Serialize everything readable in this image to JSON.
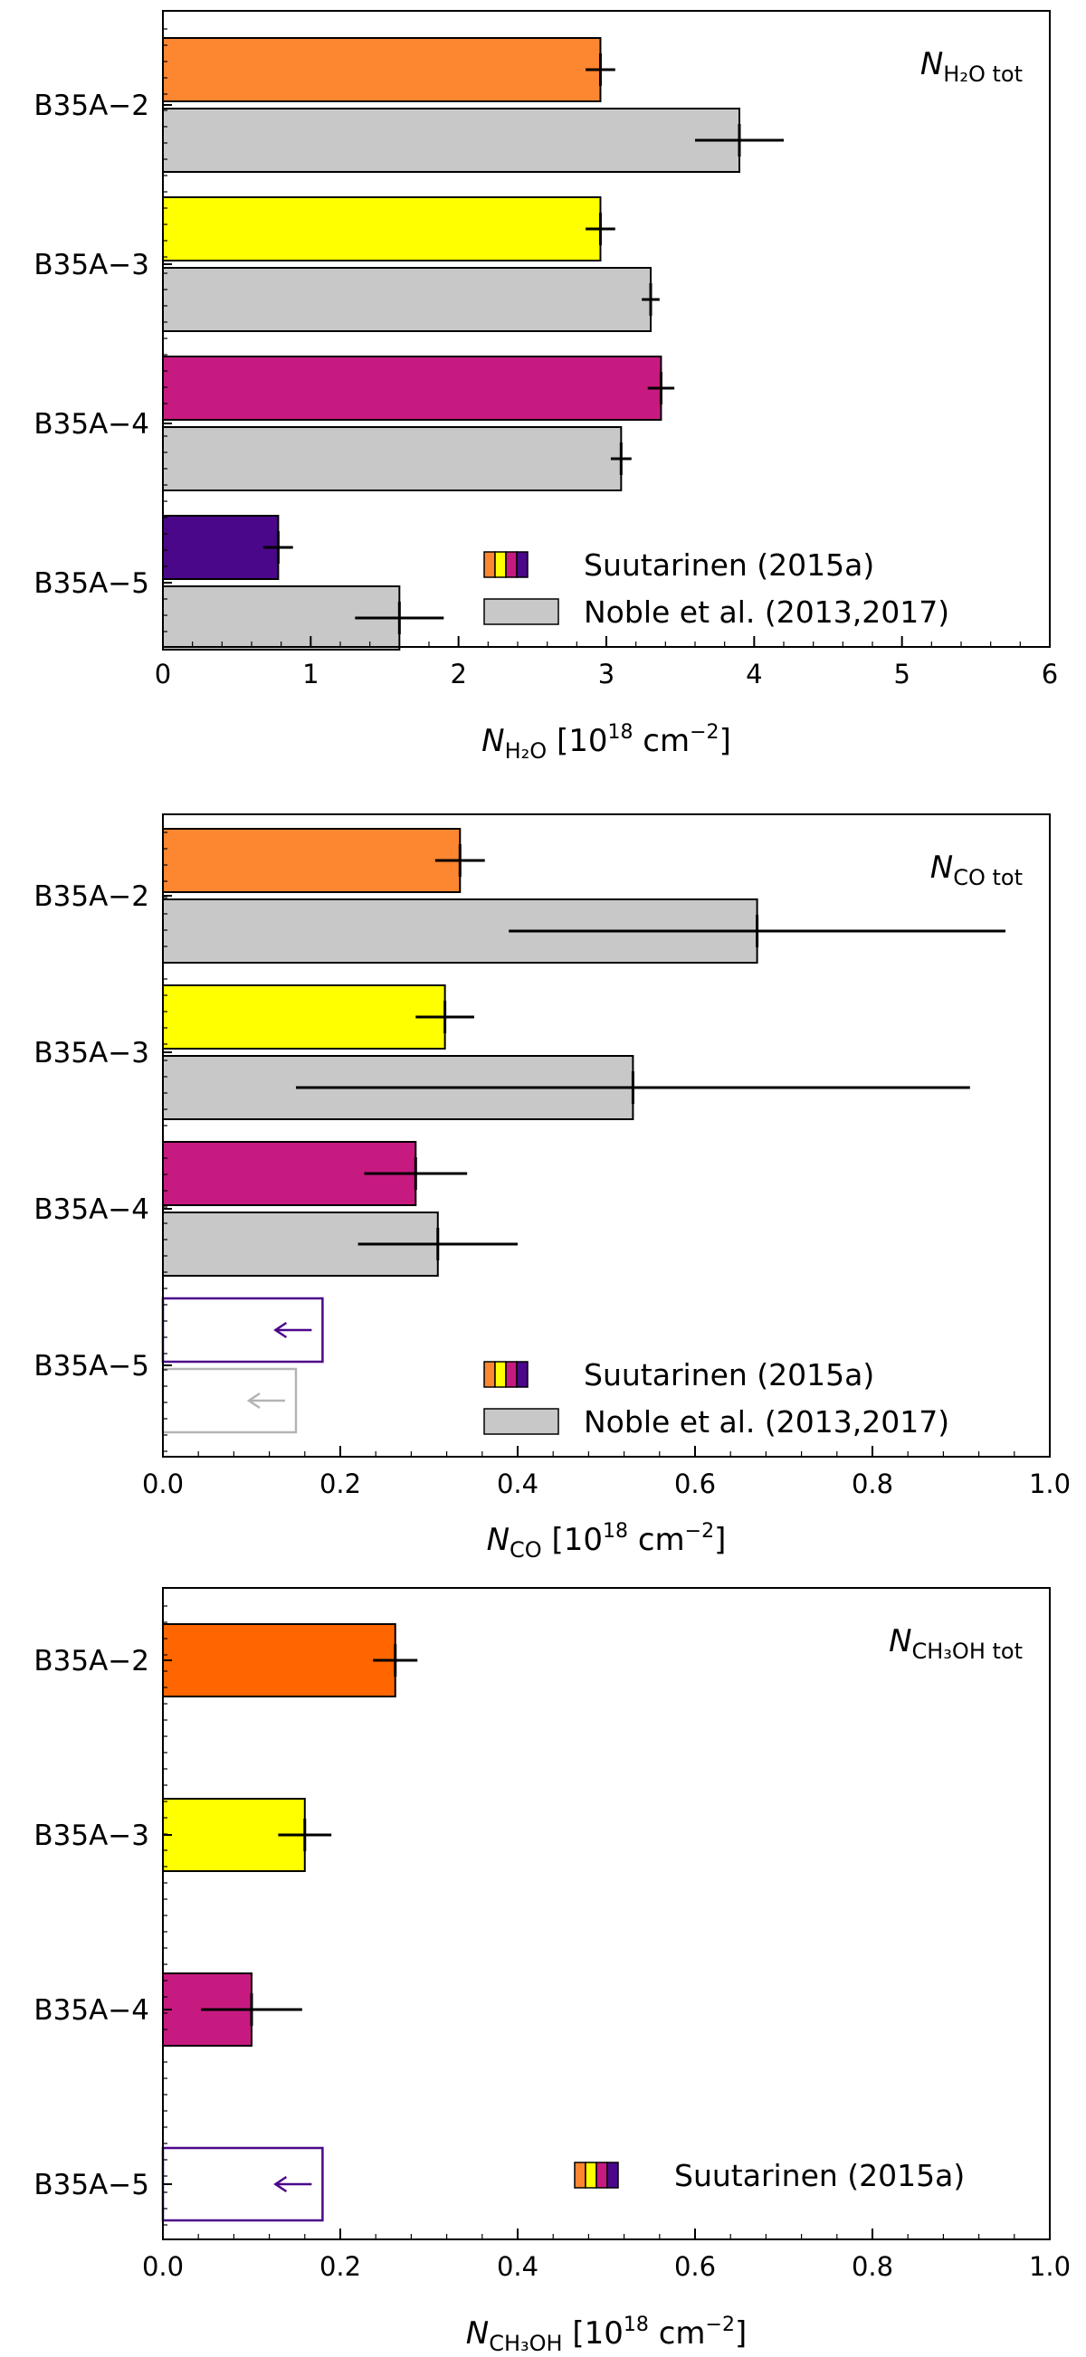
{
  "colors": {
    "b2": "#fd8631",
    "b3": "#ffff00",
    "b4": "#c71a80",
    "b5": "#4b0789",
    "noble": "#c8c8c8",
    "b2_ch3oh": "#ff6600",
    "arrow_suut": "#4b0789",
    "arrow_noble": "#b4b4b4"
  },
  "chart_data": [
    {
      "type": "bar",
      "orientation": "horizontal",
      "categories": [
        "B35A−2",
        "B35A−3",
        "B35A−4",
        "B35A−5"
      ],
      "annotation": {
        "main": "N",
        "sub": "H₂O tot"
      },
      "xlabel": {
        "main": "N",
        "sub": "H₂O",
        "rest": " [10",
        "sup": "18",
        "unit": " cm",
        "unitsup": "−2",
        "close": "]"
      },
      "xlim": [
        0,
        6
      ],
      "xticks": [
        0,
        1,
        2,
        3,
        4,
        5,
        6
      ],
      "xtick_labels": [
        "0",
        "1",
        "2",
        "3",
        "4",
        "5",
        "6"
      ],
      "series": [
        {
          "name": "Suutarinen (2015a)",
          "values": [
            2.96,
            2.96,
            3.37,
            0.78
          ],
          "errors": [
            0.1,
            0.1,
            0.09,
            0.1
          ],
          "upper_limit": [
            false,
            false,
            false,
            false
          ]
        },
        {
          "name": "Noble et al. (2013,2017)",
          "values": [
            3.9,
            3.3,
            3.1,
            1.6
          ],
          "errors": [
            0.3,
            0.06,
            0.07,
            0.3
          ],
          "upper_limit": [
            false,
            false,
            false,
            false
          ]
        }
      ],
      "legend": [
        "Suutarinen (2015a)",
        "Noble et al. (2013,2017)"
      ]
    },
    {
      "type": "bar",
      "orientation": "horizontal",
      "categories": [
        "B35A−2",
        "B35A−3",
        "B35A−4",
        "B35A−5"
      ],
      "annotation": {
        "main": "N",
        "sub": "CO tot"
      },
      "xlabel": {
        "main": "N",
        "sub": "CO",
        "rest": " [10",
        "sup": "18",
        "unit": " cm",
        "unitsup": "−2",
        "close": "]"
      },
      "xlim": [
        0,
        1
      ],
      "xticks": [
        0,
        0.2,
        0.4,
        0.6,
        0.8,
        1.0
      ],
      "xtick_labels": [
        "0.0",
        "0.2",
        "0.4",
        "0.6",
        "0.8",
        "1.0"
      ],
      "series": [
        {
          "name": "Suutarinen (2015a)",
          "values": [
            0.335,
            0.318,
            0.285,
            0.18
          ],
          "errors": [
            0.028,
            0.033,
            0.058,
            0
          ],
          "upper_limit": [
            false,
            false,
            false,
            true
          ]
        },
        {
          "name": "Noble et al. (2013,2017)",
          "values": [
            0.67,
            0.53,
            0.31,
            0.15
          ],
          "errors": [
            0.28,
            0.38,
            0.09,
            0
          ],
          "upper_limit": [
            false,
            false,
            false,
            true
          ]
        }
      ],
      "legend": [
        "Suutarinen (2015a)",
        "Noble et al. (2013,2017)"
      ]
    },
    {
      "type": "bar",
      "orientation": "horizontal",
      "categories": [
        "B35A−2",
        "B35A−3",
        "B35A−4",
        "B35A−5"
      ],
      "annotation": {
        "main": "N",
        "sub": "CH₃OH tot"
      },
      "xlabel": {
        "main": "N",
        "sub": "CH₃OH",
        "rest": " [10",
        "sup": "18",
        "unit": " cm",
        "unitsup": "−2",
        "close": "]"
      },
      "xlim": [
        0,
        1
      ],
      "xticks": [
        0,
        0.2,
        0.4,
        0.6,
        0.8,
        1.0
      ],
      "xtick_labels": [
        "0.0",
        "0.2",
        "0.4",
        "0.6",
        "0.8",
        "1.0"
      ],
      "series": [
        {
          "name": "Suutarinen (2015a)",
          "values": [
            0.262,
            0.16,
            0.1,
            0.18
          ],
          "errors": [
            0.025,
            0.03,
            0.057,
            0
          ],
          "upper_limit": [
            false,
            false,
            false,
            true
          ]
        }
      ],
      "legend": [
        "Suutarinen (2015a)"
      ]
    }
  ]
}
